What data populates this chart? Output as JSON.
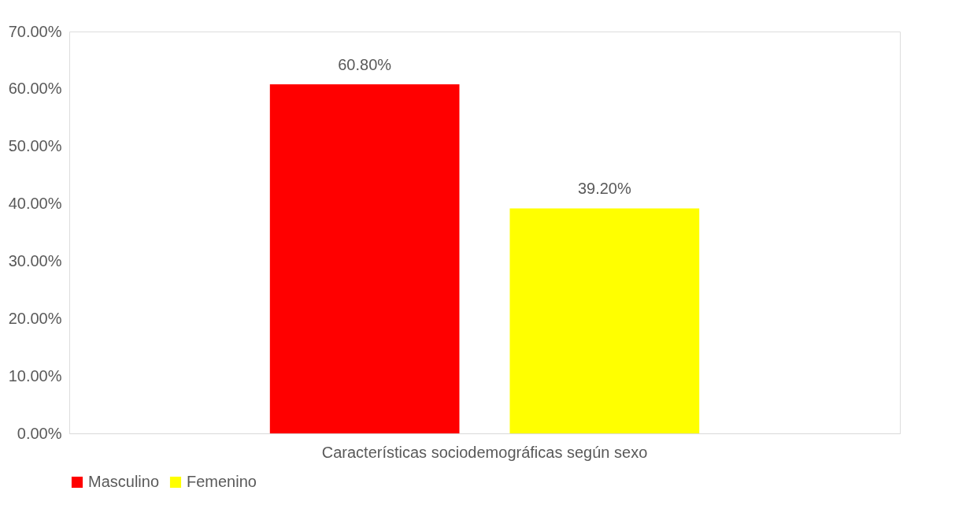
{
  "chart_data": {
    "type": "bar",
    "categories": [
      "Características sociodemográficas según sexo"
    ],
    "series": [
      {
        "name": "Masculino",
        "color": "#ff0000",
        "values": [
          60.8
        ],
        "value_labels": [
          "60.80%"
        ]
      },
      {
        "name": "Femenino",
        "color": "#ffff00",
        "values": [
          39.2
        ],
        "value_labels": [
          "39.20%"
        ]
      }
    ],
    "ylim": [
      0,
      70
    ],
    "yticks": [
      {
        "value": 0,
        "label": "0.00%"
      },
      {
        "value": 10,
        "label": "10.00%"
      },
      {
        "value": 20,
        "label": "20.00%"
      },
      {
        "value": 30,
        "label": "30.00%"
      },
      {
        "value": 40,
        "label": "40.00%"
      },
      {
        "value": 50,
        "label": "50.00%"
      },
      {
        "value": 60,
        "label": "60.00%"
      },
      {
        "value": 70,
        "label": "70.00%"
      }
    ],
    "grid": false,
    "legend": "bottom"
  }
}
